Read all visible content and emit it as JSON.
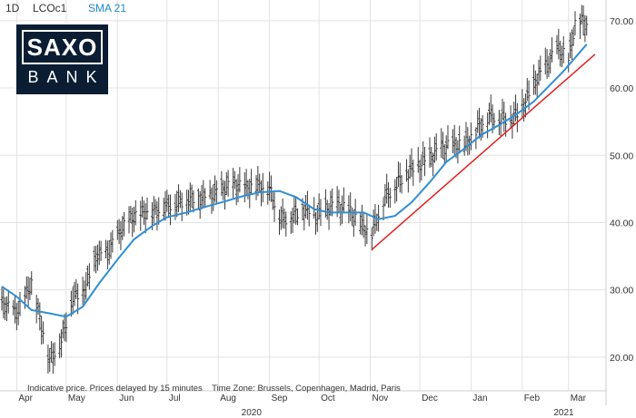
{
  "header": {
    "period": "1D",
    "symbol": "LCOc1",
    "indicator": "SMA 21"
  },
  "logo": {
    "line1": "SAXO",
    "line2": "BANK"
  },
  "notice": "Indicative price. Prices delayed by 15 minutes    Time Zone: Brussels, Copenhagen, Madrid, Paris",
  "colors": {
    "price_bars": "#3a3a3a",
    "sma": "#2f8fd4",
    "trendline": "#e02020",
    "grid": "#e3e3e3",
    "logo_bg": "#0b1d33"
  },
  "chart_data": {
    "type": "line",
    "subtype": "ohlc-bars-with-sma",
    "symbol": "LCOc1",
    "ylim": [
      15,
      72
    ],
    "yticks": [
      20.0,
      30.0,
      40.0,
      50.0,
      60.0,
      70.0
    ],
    "ytick_labels": [
      "20.00",
      "30.00",
      "40.00",
      "50.00",
      "60.00",
      "70.00"
    ],
    "x_months": [
      "Apr",
      "May",
      "Jun",
      "Jul",
      "Aug",
      "Sep",
      "Oct",
      "Nov",
      "Dec",
      "Jan",
      "Feb",
      "Mar"
    ],
    "x_years": [
      "2020",
      "2021"
    ],
    "grid": true,
    "price_axis_side": "right",
    "price": {
      "x": [
        "2020-03-23",
        "2020-04-01",
        "2020-04-10",
        "2020-04-21",
        "2020-04-28",
        "2020-05-05",
        "2020-05-12",
        "2020-05-19",
        "2020-05-26",
        "2020-06-02",
        "2020-06-09",
        "2020-06-16",
        "2020-06-23",
        "2020-06-30",
        "2020-07-07",
        "2020-07-14",
        "2020-07-21",
        "2020-07-28",
        "2020-08-04",
        "2020-08-11",
        "2020-08-18",
        "2020-08-25",
        "2020-09-01",
        "2020-09-08",
        "2020-09-15",
        "2020-09-22",
        "2020-09-29",
        "2020-10-06",
        "2020-10-13",
        "2020-10-20",
        "2020-10-27",
        "2020-11-02",
        "2020-11-09",
        "2020-11-16",
        "2020-11-23",
        "2020-11-30",
        "2020-12-07",
        "2020-12-14",
        "2020-12-21",
        "2020-12-28",
        "2021-01-05",
        "2021-01-12",
        "2021-01-19",
        "2021-01-26",
        "2021-02-02",
        "2021-02-09",
        "2021-02-16",
        "2021-02-23",
        "2021-03-01",
        "2021-03-05",
        "2021-03-08",
        "2021-03-12"
      ],
      "y": [
        28,
        26.5,
        31,
        19.5,
        22.5,
        29,
        30,
        35,
        35.5,
        38.5,
        40.5,
        41.5,
        41.5,
        42.5,
        43,
        43.5,
        43.5,
        44,
        45,
        45.5,
        45.2,
        45.5,
        45,
        40.5,
        41,
        42,
        41,
        42,
        42.5,
        41.5,
        39.5,
        38.5,
        43.5,
        45.5,
        47.5,
        48.5,
        49.5,
        51,
        51.5,
        51.5,
        54,
        56,
        55.5,
        55.5,
        57.5,
        61,
        63.5,
        66,
        64,
        69.5,
        70,
        69.5
      ]
    },
    "sma": {
      "name": "SMA 21",
      "x": [
        "2020-03-23",
        "2020-04-01",
        "2020-04-10",
        "2020-04-21",
        "2020-05-01",
        "2020-05-11",
        "2020-05-21",
        "2020-06-01",
        "2020-06-11",
        "2020-06-22",
        "2020-07-01",
        "2020-07-13",
        "2020-07-22",
        "2020-08-03",
        "2020-08-14",
        "2020-08-26",
        "2020-09-07",
        "2020-09-17",
        "2020-09-28",
        "2020-10-07",
        "2020-10-19",
        "2020-10-28",
        "2020-11-06",
        "2020-11-16",
        "2020-11-26",
        "2020-12-07",
        "2020-12-17",
        "2020-12-28",
        "2021-01-07",
        "2021-01-18",
        "2021-01-28",
        "2021-02-08",
        "2021-02-18",
        "2021-02-26",
        "2021-03-05",
        "2021-03-12"
      ],
      "y": [
        30.5,
        29,
        27,
        26.5,
        26,
        27.5,
        31,
        34.5,
        37.5,
        39.5,
        40.8,
        41.5,
        42.2,
        43,
        43.8,
        44.5,
        44.7,
        43.8,
        42,
        41.5,
        41.5,
        41.5,
        40.5,
        41,
        43,
        46,
        49,
        51,
        53,
        54.5,
        56,
        58,
        60.5,
        62.5,
        64.5,
        66.5
      ]
    },
    "trendline": {
      "x": [
        "2020-11-02",
        "2021-03-17"
      ],
      "y": [
        36,
        65
      ]
    }
  }
}
